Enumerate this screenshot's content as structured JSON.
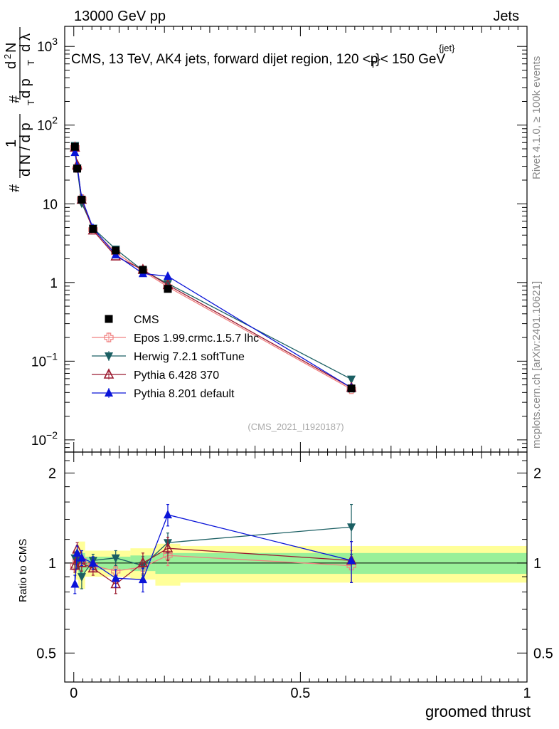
{
  "header": {
    "left": "13000 GeV pp",
    "right": "Jets"
  },
  "side": {
    "rivet": "Rivet 4.1.0, ≥ 100k events",
    "mcplots": "mcplots.cern.ch [arXiv:2401.10621]"
  },
  "chart_data": {
    "type": "line",
    "title": "CMS, 13 TeV, AK4 jets, forward dijet region, 120 < p_T^{jet} < 150 GeV",
    "title_parts": {
      "pre": "CMS, 13 TeV, AK4 jets, forward dijet region, 120 <p",
      "sup": "{jet}",
      "sub": "T",
      "post": "}< 150 GeV"
    },
    "xlabel": "groomed thrust",
    "ylabel": "1 / (dN/dp_T) · d²N / (dp_T dλ)",
    "ylabel_parts": {
      "num1": "1",
      "den1": "d N / d p",
      "num2": "d",
      "num2sup": "2",
      "num2b": "N",
      "den2": "d p",
      "den2b": "d",
      "lambda": "λ",
      "sub": "T",
      "hash": "#"
    },
    "watermark": "(CMS_2021_I1920187)",
    "xlim": [
      -0.02,
      1.0
    ],
    "ylim": [
      0.007,
      1800
    ],
    "yscale": "log",
    "x_ticks": [
      {
        "value": 0,
        "label": "0"
      },
      {
        "value": 0.5,
        "label": "0.5"
      },
      {
        "value": 1,
        "label": "1"
      }
    ],
    "y_ticks": [
      {
        "value": 0.01,
        "base": "10",
        "exp": "−2"
      },
      {
        "value": 0.1,
        "base": "10",
        "exp": "−1"
      },
      {
        "value": 1,
        "base": "1",
        "exp": ""
      },
      {
        "value": 10,
        "base": "10",
        "exp": ""
      },
      {
        "value": 100,
        "base": "10",
        "exp": "2"
      },
      {
        "value": 1000,
        "base": "10",
        "exp": "3"
      }
    ],
    "x": [
      0.0025,
      0.0075,
      0.0175,
      0.0425,
      0.0925,
      0.1525,
      0.2075,
      0.6125
    ],
    "data": {
      "name": "CMS",
      "values": [
        53,
        28,
        11.3,
        4.8,
        2.55,
        1.45,
        0.83,
        0.045
      ],
      "errors_lo": [
        3,
        2,
        0.6,
        0.3,
        0.15,
        0.1,
        0.06,
        0.004
      ],
      "errors_hi": [
        3,
        2,
        0.6,
        0.3,
        0.15,
        0.1,
        0.06,
        0.004
      ]
    },
    "series": [
      {
        "name": "Epos 1.99.crmc.1.5.7 lhc",
        "color": "#f08080",
        "marker": "open-cross",
        "values": [
          52,
          28.5,
          11.5,
          4.7,
          2.4,
          1.4,
          0.88,
          0.044
        ],
        "ratio": [
          0.98,
          1.02,
          1.02,
          0.98,
          0.94,
          0.97,
          1.06,
          0.98
        ],
        "ratio_err": [
          0.04,
          0.04,
          0.04,
          0.04,
          0.05,
          0.06,
          0.08,
          0.12
        ]
      },
      {
        "name": "Herwig 7.2.1 softTune",
        "color": "#1b5f63",
        "marker": "down-triangle",
        "values": [
          55,
          28.5,
          10.2,
          4.9,
          2.65,
          1.42,
          0.97,
          0.059
        ],
        "ratio": [
          1.04,
          1.02,
          0.9,
          1.02,
          1.04,
          0.98,
          1.17,
          1.32
        ],
        "ratio_err": [
          0.05,
          0.06,
          0.08,
          0.05,
          0.06,
          0.07,
          0.09,
          0.25
        ]
      },
      {
        "name": "Pythia 6.428 370",
        "color": "#9b1b30",
        "marker": "open-triangle",
        "values": [
          52,
          31,
          11.3,
          4.6,
          2.15,
          1.45,
          0.93,
          0.046
        ],
        "ratio": [
          0.98,
          1.11,
          1.0,
          0.96,
          0.85,
          1.0,
          1.12,
          1.02
        ],
        "ratio_err": [
          0.05,
          0.06,
          0.06,
          0.05,
          0.06,
          0.08,
          0.1,
          0.16
        ]
      },
      {
        "name": "Pythia 8.201 default",
        "color": "#0a14d8",
        "marker": "up-triangle",
        "values": [
          45,
          30,
          11.7,
          4.9,
          2.25,
          1.3,
          1.2,
          0.046
        ],
        "ratio": [
          0.85,
          1.08,
          1.04,
          1.0,
          0.89,
          0.88,
          1.45,
          1.02
        ],
        "ratio_err": [
          0.06,
          0.06,
          0.06,
          0.05,
          0.06,
          0.08,
          0.12,
          0.16
        ]
      }
    ],
    "ratio_panel": {
      "ylabel": "Ratio to CMS",
      "ylim": [
        0.4,
        2.35
      ],
      "yscale": "log",
      "y_ticks": [
        {
          "value": 0.5,
          "label": "0.5"
        },
        {
          "value": 1,
          "label": "1"
        },
        {
          "value": 2,
          "label": "2"
        }
      ],
      "bins": [
        {
          "x0": 0.0,
          "x1": 0.005,
          "inner": 0.05,
          "outer": 0.1
        },
        {
          "x0": 0.005,
          "x1": 0.01,
          "inner": 0.05,
          "outer": 0.12
        },
        {
          "x0": 0.01,
          "x1": 0.025,
          "inner": 0.08,
          "outer": 0.18
        },
        {
          "x0": 0.025,
          "x1": 0.06,
          "inner": 0.05,
          "outer": 0.1
        },
        {
          "x0": 0.06,
          "x1": 0.125,
          "inner": 0.05,
          "outer": 0.1
        },
        {
          "x0": 0.125,
          "x1": 0.18,
          "inner": 0.06,
          "outer": 0.12
        },
        {
          "x0": 0.18,
          "x1": 0.235,
          "inner": 0.08,
          "outer": 0.16
        },
        {
          "x0": 0.235,
          "x1": 1.0,
          "inner": 0.08,
          "outer": 0.14
        }
      ]
    }
  }
}
